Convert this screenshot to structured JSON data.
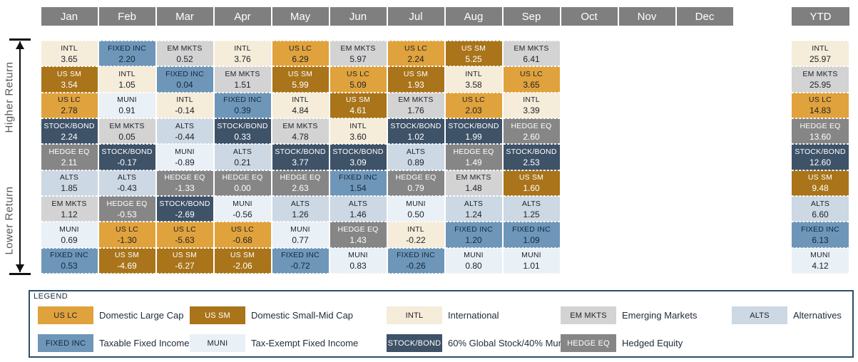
{
  "axis": {
    "higher_label": "Higher Return",
    "lower_label": "Lower Return"
  },
  "asset_classes": {
    "US LC": {
      "color": "#E0A23C",
      "text_color": "#20242C"
    },
    "US SM": {
      "color": "#A9741A",
      "text_color": "#FFFFFF"
    },
    "INTL": {
      "color": "#F5ECD9",
      "text_color": "#20242C"
    },
    "EM MKTS": {
      "color": "#D3D3D3",
      "text_color": "#20242C"
    },
    "ALTS": {
      "color": "#CCD8E3",
      "text_color": "#20242C"
    },
    "FIXED INC": {
      "color": "#6E96B8",
      "text_color": "#14293E"
    },
    "MUNI": {
      "color": "#E9F0F6",
      "text_color": "#20242C"
    },
    "STOCK/BOND": {
      "color": "#3E5268",
      "text_color": "#FFFFFF"
    },
    "HEDGE EQ": {
      "color": "#868686",
      "text_color": "#FFFFFF"
    }
  },
  "header_color": "#7F7F7F",
  "chart_data": {
    "type": "table",
    "columns": [
      "Jan",
      "Feb",
      "Mar",
      "Apr",
      "May",
      "Jun",
      "Jul",
      "Aug",
      "Sep",
      "Oct",
      "Nov",
      "Dec"
    ],
    "ytd_label": "YTD",
    "ranked_returns": {
      "Jan": [
        [
          "INTL",
          3.65
        ],
        [
          "US SM",
          3.54
        ],
        [
          "US LC",
          2.78
        ],
        [
          "STOCK/BOND",
          2.24
        ],
        [
          "HEDGE EQ",
          2.11
        ],
        [
          "ALTS",
          1.85
        ],
        [
          "EM MKTS",
          1.12
        ],
        [
          "MUNI",
          0.69
        ],
        [
          "FIXED INC",
          0.53
        ]
      ],
      "Feb": [
        [
          "FIXED INC",
          2.2
        ],
        [
          "INTL",
          1.05
        ],
        [
          "MUNI",
          0.91
        ],
        [
          "EM MKTS",
          0.05
        ],
        [
          "STOCK/BOND",
          -0.17
        ],
        [
          "ALTS",
          -0.43
        ],
        [
          "HEDGE EQ",
          -0.53
        ],
        [
          "US LC",
          -1.3
        ],
        [
          "US SM",
          -4.69
        ]
      ],
      "Mar": [
        [
          "EM MKTS",
          0.52
        ],
        [
          "FIXED INC",
          0.04
        ],
        [
          "INTL",
          -0.14
        ],
        [
          "ALTS",
          -0.44
        ],
        [
          "MUNI",
          -0.89
        ],
        [
          "HEDGE EQ",
          -1.33
        ],
        [
          "STOCK/BOND",
          -2.69
        ],
        [
          "US LC",
          -5.63
        ],
        [
          "US SM",
          -6.27
        ]
      ],
      "Apr": [
        [
          "INTL",
          3.76
        ],
        [
          "EM MKTS",
          1.51
        ],
        [
          "FIXED INC",
          0.39
        ],
        [
          "STOCK/BOND",
          0.33
        ],
        [
          "ALTS",
          0.21
        ],
        [
          "HEDGE EQ",
          0.0
        ],
        [
          "MUNI",
          -0.56
        ],
        [
          "US LC",
          -0.68
        ],
        [
          "US SM",
          -2.06
        ]
      ],
      "May": [
        [
          "US LC",
          6.29
        ],
        [
          "US SM",
          5.99
        ],
        [
          "INTL",
          4.84
        ],
        [
          "EM MKTS",
          4.78
        ],
        [
          "STOCK/BOND",
          3.77
        ],
        [
          "HEDGE EQ",
          2.63
        ],
        [
          "ALTS",
          1.26
        ],
        [
          "MUNI",
          0.77
        ],
        [
          "FIXED INC",
          -0.72
        ]
      ],
      "Jun": [
        [
          "EM MKTS",
          5.97
        ],
        [
          "US LC",
          5.09
        ],
        [
          "US SM",
          4.61
        ],
        [
          "INTL",
          3.6
        ],
        [
          "STOCK/BOND",
          3.09
        ],
        [
          "FIXED INC",
          1.54
        ],
        [
          "ALTS",
          1.46
        ],
        [
          "HEDGE EQ",
          1.43
        ],
        [
          "MUNI",
          0.83
        ]
      ],
      "Jul": [
        [
          "US LC",
          2.24
        ],
        [
          "US SM",
          1.93
        ],
        [
          "EM MKTS",
          1.76
        ],
        [
          "STOCK/BOND",
          1.02
        ],
        [
          "ALTS",
          0.89
        ],
        [
          "HEDGE EQ",
          0.79
        ],
        [
          "MUNI",
          0.5
        ],
        [
          "INTL",
          -0.22
        ],
        [
          "FIXED INC",
          -0.26
        ]
      ],
      "Aug": [
        [
          "US SM",
          5.25
        ],
        [
          "INTL",
          3.58
        ],
        [
          "US LC",
          2.03
        ],
        [
          "STOCK/BOND",
          1.99
        ],
        [
          "HEDGE EQ",
          1.49
        ],
        [
          "EM MKTS",
          1.48
        ],
        [
          "ALTS",
          1.24
        ],
        [
          "FIXED INC",
          1.2
        ],
        [
          "MUNI",
          0.8
        ]
      ],
      "Sep": [
        [
          "EM MKTS",
          6.41
        ],
        [
          "US LC",
          3.65
        ],
        [
          "INTL",
          3.39
        ],
        [
          "HEDGE EQ",
          2.6
        ],
        [
          "STOCK/BOND",
          2.53
        ],
        [
          "US SM",
          1.6
        ],
        [
          "ALTS",
          1.25
        ],
        [
          "FIXED INC",
          1.09
        ],
        [
          "MUNI",
          1.01
        ]
      ],
      "Oct": [],
      "Nov": [],
      "Dec": [],
      "YTD": [
        [
          "INTL",
          25.97
        ],
        [
          "EM MKTS",
          25.95
        ],
        [
          "US LC",
          14.83
        ],
        [
          "HEDGE EQ",
          13.6
        ],
        [
          "STOCK/BOND",
          12.6
        ],
        [
          "US SM",
          9.48
        ],
        [
          "ALTS",
          6.6
        ],
        [
          "FIXED INC",
          6.13
        ],
        [
          "MUNI",
          4.12
        ]
      ]
    }
  },
  "legend": {
    "title": "LEGEND",
    "rows": [
      [
        {
          "key": "US LC",
          "desc": "Domestic Large Cap"
        },
        {
          "key": "US SM",
          "desc": "Domestic Small-Mid Cap"
        },
        {
          "key": "INTL",
          "desc": "International"
        },
        {
          "key": "EM MKTS",
          "desc": "Emerging Markets"
        },
        {
          "key": "ALTS",
          "desc": "Alternatives"
        }
      ],
      [
        {
          "key": "FIXED INC",
          "desc": "Taxable Fixed Income"
        },
        {
          "key": "MUNI",
          "desc": "Tax-Exempt Fixed Income"
        },
        {
          "key": "STOCK/BOND",
          "desc": "60% Global Stock/40% Muni"
        },
        {
          "key": "HEDGE EQ",
          "desc": "Hedged Equity"
        }
      ]
    ]
  }
}
